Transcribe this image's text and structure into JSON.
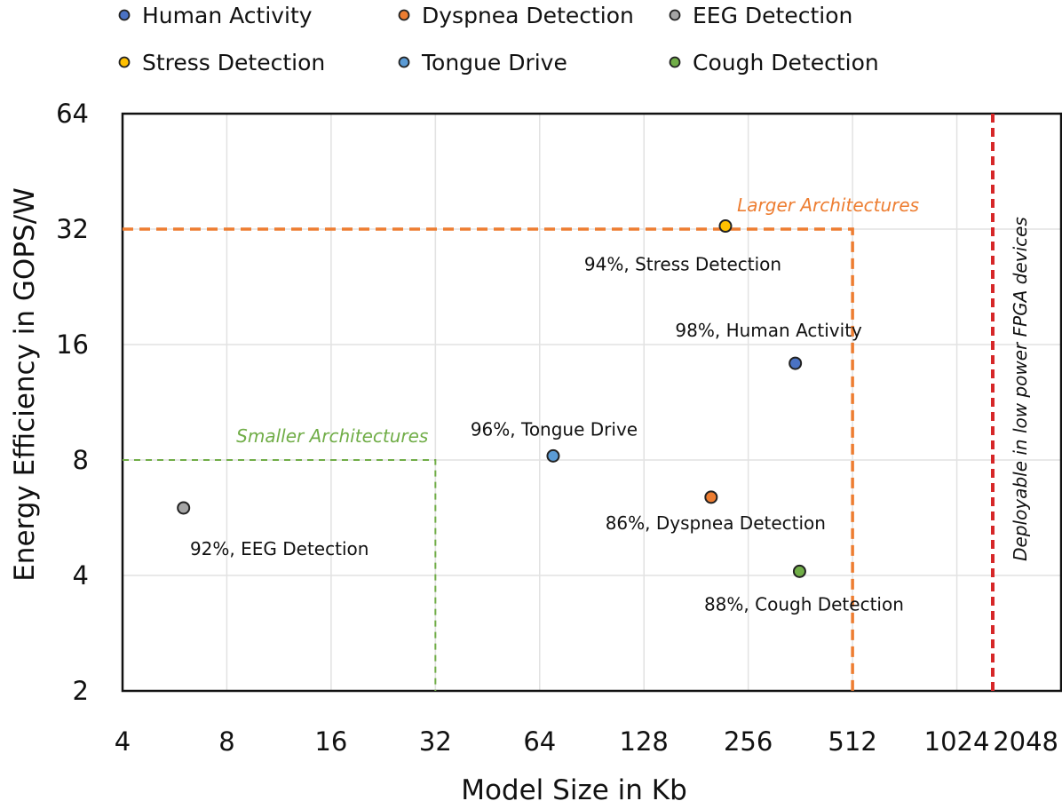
{
  "chart_data": {
    "type": "scatter",
    "title": "",
    "xlabel": "Model Size in Kb",
    "ylabel": "Energy Efficiency in GOPS/W",
    "xscale": "log2",
    "yscale": "log2",
    "xlim": [
      4,
      2048
    ],
    "ylim": [
      2,
      64
    ],
    "xticks": [
      4,
      8,
      16,
      32,
      64,
      128,
      256,
      512,
      1024,
      2048
    ],
    "yticks": [
      2,
      4,
      8,
      16,
      32,
      64
    ],
    "xtick_labels": [
      "4",
      "8",
      "16",
      "32",
      "64",
      "128",
      "256",
      "512",
      "1024",
      "2048"
    ],
    "ytick_labels": [
      "2",
      "4",
      "8",
      "16",
      "32",
      "64"
    ],
    "grid": true,
    "legend_position": "top",
    "series": [
      {
        "name": "Human Activity",
        "color": "#4a72c4",
        "x": 350,
        "y": 14.3,
        "label": "98%, Human Activity"
      },
      {
        "name": "Dyspnea Detection",
        "color": "#ed7d31",
        "x": 200,
        "y": 6.4,
        "label": "86%, Dyspnea Detection"
      },
      {
        "name": "EEG Detection",
        "color": "#a5a5a5",
        "x": 6,
        "y": 6.0,
        "label": "92%, EEG Detection"
      },
      {
        "name": "Stress Detection",
        "color": "#ffc000",
        "x": 220,
        "y": 32.6,
        "label": "94%, Stress Detection"
      },
      {
        "name": "Tongue Drive",
        "color": "#5b9bd5",
        "x": 70,
        "y": 8.2,
        "label": "96%, Tongue Drive"
      },
      {
        "name": "Cough Detection",
        "color": "#70ad47",
        "x": 360,
        "y": 4.1,
        "label": "88%, Cough Detection"
      }
    ],
    "regions": [
      {
        "name": "Smaller Architectures",
        "x_max": 32,
        "y_max": 8,
        "color": "#70ad47"
      },
      {
        "name": "Larger Architectures",
        "x_max": 512,
        "y_max": 32,
        "color": "#ed7d31"
      }
    ],
    "vline": {
      "x": 1300,
      "label": "Deployable in low power FPGA devices",
      "color": "#d62728"
    }
  }
}
